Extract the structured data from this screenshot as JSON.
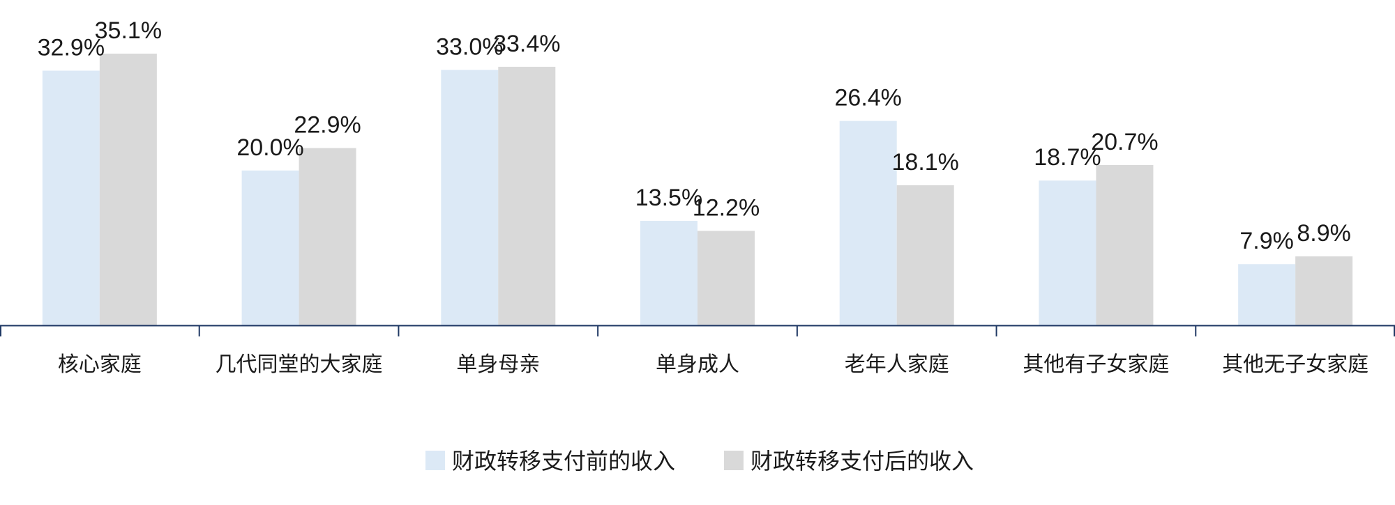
{
  "chart_data": {
    "type": "bar",
    "categories": [
      "核心家庭",
      "几代同堂的大家庭",
      "单身母亲",
      "单身成人",
      "老年人家庭",
      "其他有子女家庭",
      "其他无子女家庭"
    ],
    "series": [
      {
        "name": "财政转移支付前的收入",
        "values": [
          32.9,
          20.0,
          33.0,
          13.5,
          26.4,
          18.7,
          7.9
        ],
        "labels": [
          "32.9%",
          "20.0%",
          "33.0%",
          "13.5%",
          "26.4%",
          "18.7%",
          "7.9%"
        ],
        "color": "#dce9f6"
      },
      {
        "name": "财政转移支付后的收入",
        "values": [
          35.1,
          22.9,
          33.4,
          12.2,
          18.1,
          20.7,
          8.9
        ],
        "labels": [
          "35.1%",
          "22.9%",
          "33.4%",
          "12.2%",
          "18.1%",
          "20.7%",
          "8.9%"
        ],
        "color": "#d9d9d9"
      }
    ],
    "title": "",
    "xlabel": "",
    "ylabel": "",
    "ylim": [
      0,
      35.1
    ],
    "grid": false,
    "legend_position": "bottom",
    "axis_color": "#1f3864"
  }
}
